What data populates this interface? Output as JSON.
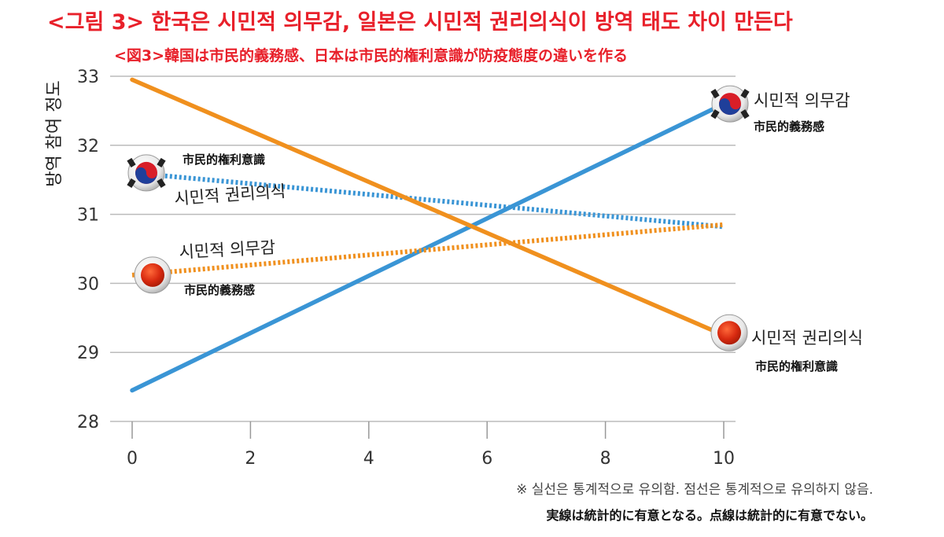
{
  "title": "<그림 3> 한국은 시민적 의무감, 일본은 시민적 권리의식이 방역 태도 차이 만든다",
  "subtitle": "<図3>韓国は市民的義務感、日本は市民的権利意識が防疫態度の違いを作る",
  "footnote_ko": "※ 실선은 통계적으로 유의함. 점선은 통계적으로 유의하지 않음.",
  "footnote_ja": "実線は統計的に有意となる。点線は統計的に有意でない。",
  "colors": {
    "korea_duty": "#3a95d5",
    "japan": "#f0901e",
    "grid": "#bbbbbb",
    "axis": "#999999"
  },
  "chart_data": {
    "type": "line",
    "ylabel": "방역 참여 정도",
    "xlabel": "",
    "xlim": [
      0,
      10
    ],
    "ylim": [
      28,
      33
    ],
    "xticks": [
      0,
      2,
      4,
      6,
      8,
      10
    ],
    "yticks": [
      28,
      29,
      30,
      31,
      32,
      33
    ],
    "grid": "horizontal",
    "series": [
      {
        "country": "korea",
        "style": "solid",
        "color": "#3a95d5",
        "x": [
          0,
          10
        ],
        "y": [
          28.45,
          32.6
        ]
      },
      {
        "country": "korea",
        "style": "dotted",
        "color": "#3a95d5",
        "x": [
          0,
          10
        ],
        "y": [
          31.6,
          30.82
        ]
      },
      {
        "country": "japan",
        "style": "solid",
        "color": "#f0901e",
        "x": [
          0,
          10
        ],
        "y": [
          32.95,
          29.25
        ]
      },
      {
        "country": "japan",
        "style": "dotted",
        "color": "#f0901e",
        "x": [
          0,
          10
        ],
        "y": [
          30.12,
          30.85
        ]
      }
    ],
    "annotations": [
      {
        "name": "korea-duty-end",
        "ko": "시민적 의무감",
        "ja": "市民的義務感",
        "flag": "korea"
      },
      {
        "name": "korea-rights-start",
        "ko": "시민적 권리의식",
        "ja": "市民的権利意識",
        "flag": "korea"
      },
      {
        "name": "japan-duty-start",
        "ko": "시민적 의무감",
        "ja": "市民的義務感",
        "flag": "japan"
      },
      {
        "name": "japan-rights-end",
        "ko": "시민적 권리의식",
        "ja": "市民的権利意識",
        "flag": "japan"
      }
    ]
  }
}
